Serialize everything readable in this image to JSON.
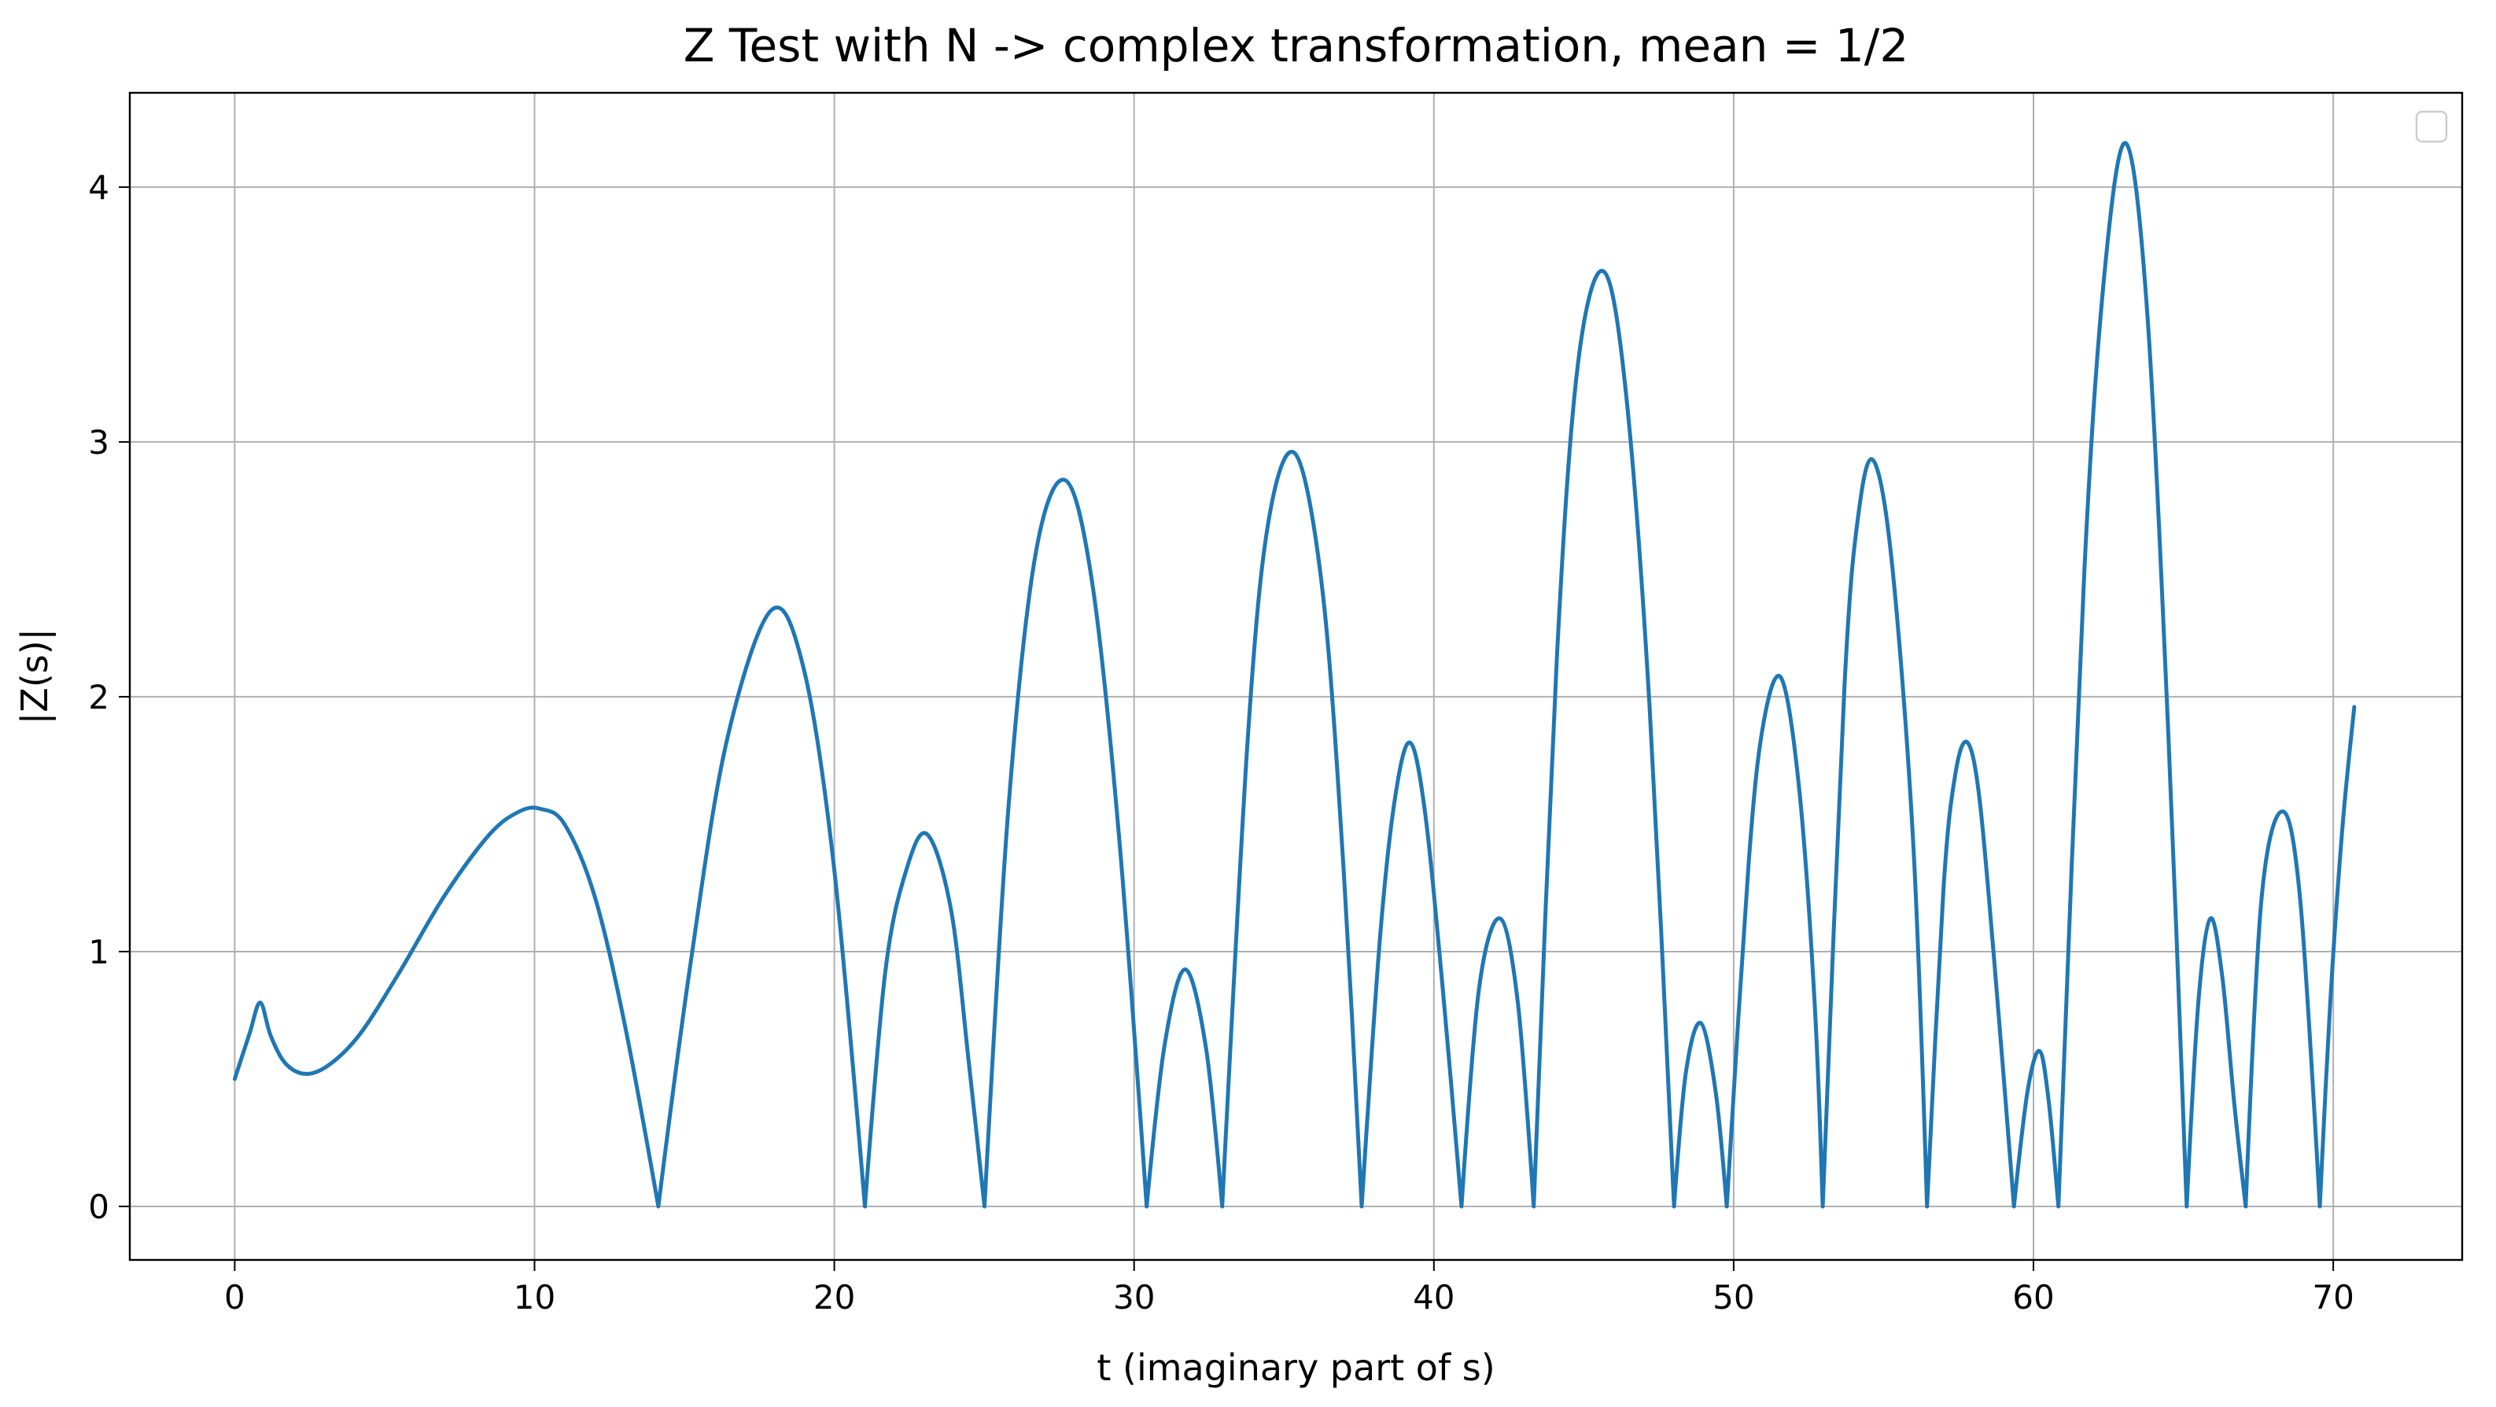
{
  "chart_data": {
    "type": "line",
    "title": "Z Test with N -> complex transformation, mean = 1/2",
    "xlabel": "t (imaginary part of s)",
    "ylabel": "|Z(s)|",
    "xlim": [
      -3.5,
      74.3
    ],
    "ylim": [
      -0.21,
      4.37
    ],
    "xticks": [
      0,
      10,
      20,
      30,
      40,
      50,
      60,
      70
    ],
    "yticks": [
      0,
      1,
      2,
      3,
      4
    ],
    "grid": true,
    "legend": {
      "placement": "top-right",
      "entries": []
    },
    "series": [
      {
        "color": "#1f77b4",
        "x": [
          0,
          0.5,
          0.85,
          1.2,
          1.7,
          2.4,
          3.2,
          4.2,
          5.5,
          7.0,
          8.5,
          9.5,
          10.2,
          11.0,
          12.0,
          13.0,
          14.13,
          15.2,
          16.4,
          17.9,
          19.0,
          20.0,
          21.02,
          21.7,
          22.4,
          23.1,
          23.9,
          24.5,
          25.01,
          25.8,
          26.7,
          27.7,
          28.6,
          29.5,
          30.42,
          31.0,
          31.7,
          32.4,
          32.94,
          33.8,
          34.5,
          35.4,
          36.3,
          37.0,
          37.59,
          38.2,
          38.7,
          39.2,
          39.7,
          40.3,
          40.92,
          41.5,
          42.2,
          42.8,
          43.33,
          44.1,
          44.8,
          45.65,
          46.4,
          47.2,
          48.01,
          48.4,
          48.9,
          49.4,
          49.77,
          50.5,
          51.0,
          51.6,
          52.2,
          52.7,
          52.97,
          53.7,
          54.2,
          54.7,
          55.3,
          56.0,
          56.45,
          57.0,
          57.4,
          57.8,
          58.2,
          58.7,
          59.35,
          59.8,
          60.2,
          60.5,
          60.83,
          61.7,
          62.4,
          63.1,
          63.8,
          64.5,
          65.11,
          65.5,
          65.9,
          66.3,
          66.7,
          67.08,
          67.6,
          68.3,
          68.9,
          69.55,
          69.9,
          70.3,
          70.7
        ],
        "y": [
          0.5,
          0.68,
          0.8,
          0.67,
          0.56,
          0.52,
          0.56,
          0.68,
          0.92,
          1.22,
          1.46,
          1.55,
          1.56,
          1.5,
          1.22,
          0.72,
          0.0,
          0.95,
          1.82,
          2.34,
          2.1,
          1.32,
          0.0,
          0.92,
          1.32,
          1.46,
          1.16,
          0.55,
          0.0,
          1.55,
          2.55,
          2.85,
          2.45,
          1.45,
          0.0,
          0.62,
          0.93,
          0.62,
          0.0,
          1.85,
          2.7,
          2.95,
          2.4,
          1.3,
          0.0,
          1.05,
          1.6,
          1.82,
          1.55,
          0.85,
          0.0,
          0.85,
          1.13,
          0.8,
          0.0,
          2.15,
          3.3,
          3.67,
          3.2,
          1.95,
          0.0,
          0.52,
          0.72,
          0.45,
          0.0,
          1.35,
          1.9,
          2.07,
          1.62,
          0.8,
          0.0,
          2.05,
          2.75,
          2.92,
          2.5,
          1.4,
          0.0,
          1.25,
          1.7,
          1.82,
          1.6,
          0.95,
          0.0,
          0.45,
          0.61,
          0.42,
          0.0,
          2.5,
          3.7,
          4.17,
          3.5,
          1.85,
          0.0,
          0.8,
          1.13,
          0.9,
          0.4,
          0.0,
          1.2,
          1.55,
          1.2,
          0.0,
          0.8,
          1.48,
          1.96
        ]
      }
    ]
  }
}
